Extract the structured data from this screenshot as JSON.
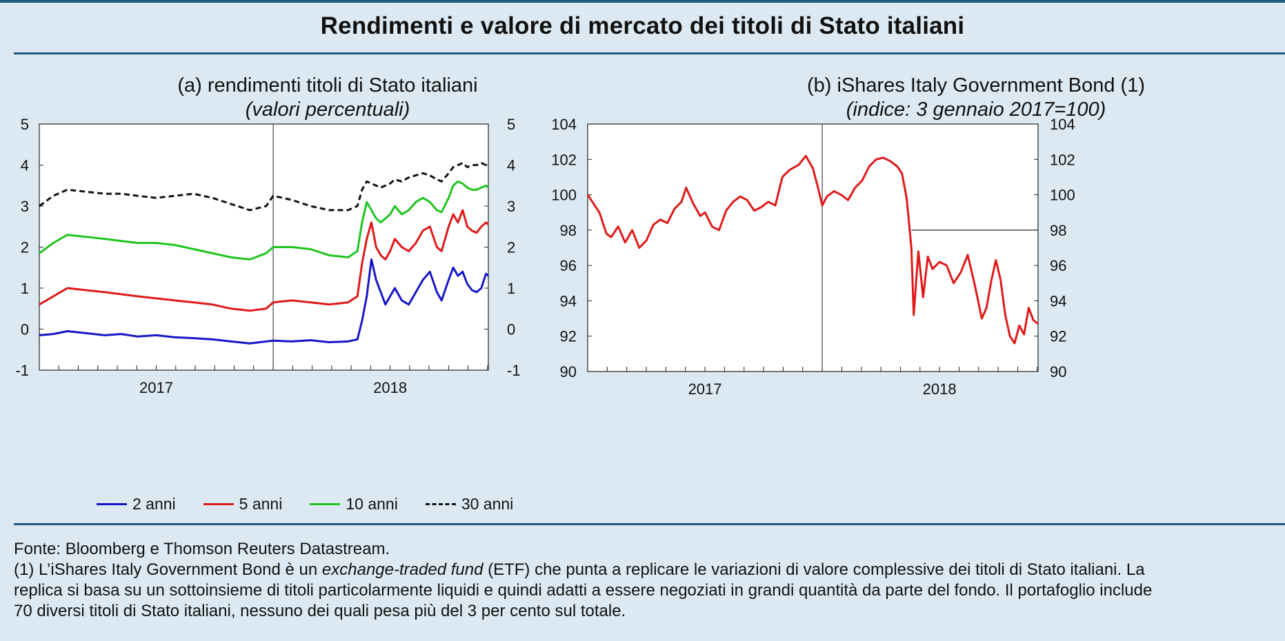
{
  "title": "Rendimenti e valore di mercato dei titoli di Stato italiani",
  "colors": {
    "band": "#1d5a7e",
    "background": "#dce9f2",
    "blue": "#1515c8",
    "red": "#e01818",
    "green": "#1ec41e",
    "black": "#111111"
  },
  "panel_a": {
    "title": "(a) rendimenti titoli di Stato italiani",
    "subtitle": "(valori percentuali)"
  },
  "panel_b": {
    "title": "(b) iShares Italy Government Bond (1)",
    "subtitle": "(indice: 3 gennaio 2017=100)"
  },
  "legend": [
    {
      "label": "2 anni",
      "color": "#1515c8",
      "dashed": false
    },
    {
      "label": "5 anni",
      "color": "#e01818",
      "dashed": false
    },
    {
      "label": "10 anni",
      "color": "#1ec41e",
      "dashed": false
    },
    {
      "label": "30 anni",
      "color": "#111111",
      "dashed": true
    }
  ],
  "footnote": {
    "source": "Fonte: Bloomberg e Thomson Reuters Datastream.",
    "note_prefix": "(1) L’iShares Italy Government Bond è un ",
    "note_italic": "exchange-traded fund",
    "note_rest": " (ETF) che punta a replicare le variazioni di valore complessive dei titoli di Stato italiani. La",
    "line2": "replica si basa su un sottoinsieme di titoli particolarmente liquidi e quindi adatti a essere negoziati in grandi quantità da parte del fondo. Il portafoglio include",
    "line3": "70 diversi titoli di Stato italiani, nessuno dei quali pesa più del 3 per cento sul totale."
  },
  "chart_data": [
    {
      "type": "line",
      "title": "(a) rendimenti titoli di Stato italiani",
      "subtitle": "(valori percentuali)",
      "x_range": [
        2017.0,
        2018.92
      ],
      "year_labels": [
        "2017",
        "2018"
      ],
      "year_label_positions": [
        2017.5,
        2018.5
      ],
      "year_divider": 2018.0,
      "ylim": [
        -1,
        5
      ],
      "yticks": [
        "-1",
        "0",
        "1",
        "2",
        "3",
        "4",
        "5"
      ],
      "y_axis_right": true,
      "series": [
        {
          "name": "2 anni",
          "color": "#1515c8",
          "dashed": false,
          "x": [
            2017.0,
            2017.06,
            2017.12,
            2017.2,
            2017.28,
            2017.35,
            2017.42,
            2017.5,
            2017.58,
            2017.66,
            2017.74,
            2017.82,
            2017.9,
            2017.97,
            2018.0,
            2018.08,
            2018.16,
            2018.24,
            2018.32,
            2018.36,
            2018.38,
            2018.4,
            2018.42,
            2018.44,
            2018.46,
            2018.48,
            2018.5,
            2018.52,
            2018.55,
            2018.58,
            2018.61,
            2018.64,
            2018.67,
            2018.7,
            2018.72,
            2018.75,
            2018.77,
            2018.79,
            2018.81,
            2018.83,
            2018.85,
            2018.87,
            2018.89,
            2018.91,
            2018.92
          ],
          "values": [
            -0.15,
            -0.12,
            -0.05,
            -0.1,
            -0.15,
            -0.12,
            -0.18,
            -0.15,
            -0.2,
            -0.22,
            -0.25,
            -0.3,
            -0.35,
            -0.3,
            -0.28,
            -0.3,
            -0.27,
            -0.32,
            -0.3,
            -0.25,
            0.2,
            0.8,
            1.7,
            1.2,
            0.9,
            0.6,
            0.8,
            1.0,
            0.7,
            0.6,
            0.9,
            1.2,
            1.4,
            0.9,
            0.7,
            1.2,
            1.5,
            1.3,
            1.4,
            1.1,
            0.95,
            0.9,
            1.0,
            1.35,
            1.3
          ]
        },
        {
          "name": "5 anni",
          "color": "#e01818",
          "dashed": false,
          "x": [
            2017.0,
            2017.06,
            2017.12,
            2017.2,
            2017.28,
            2017.35,
            2017.42,
            2017.5,
            2017.58,
            2017.66,
            2017.74,
            2017.82,
            2017.9,
            2017.97,
            2018.0,
            2018.08,
            2018.16,
            2018.24,
            2018.32,
            2018.36,
            2018.38,
            2018.4,
            2018.42,
            2018.44,
            2018.46,
            2018.48,
            2018.5,
            2018.52,
            2018.55,
            2018.58,
            2018.61,
            2018.64,
            2018.67,
            2018.7,
            2018.72,
            2018.75,
            2018.77,
            2018.79,
            2018.81,
            2018.83,
            2018.85,
            2018.87,
            2018.89,
            2018.91,
            2018.92
          ],
          "values": [
            0.6,
            0.8,
            1.0,
            0.95,
            0.9,
            0.85,
            0.8,
            0.75,
            0.7,
            0.65,
            0.6,
            0.5,
            0.45,
            0.5,
            0.65,
            0.7,
            0.65,
            0.6,
            0.65,
            0.8,
            1.6,
            2.2,
            2.6,
            2.0,
            1.8,
            1.7,
            1.9,
            2.2,
            2.0,
            1.9,
            2.1,
            2.4,
            2.5,
            2.0,
            1.9,
            2.5,
            2.8,
            2.6,
            2.9,
            2.5,
            2.4,
            2.35,
            2.5,
            2.6,
            2.55
          ]
        },
        {
          "name": "10 anni",
          "color": "#1ec41e",
          "dashed": false,
          "x": [
            2017.0,
            2017.06,
            2017.12,
            2017.2,
            2017.28,
            2017.35,
            2017.42,
            2017.5,
            2017.58,
            2017.66,
            2017.74,
            2017.82,
            2017.9,
            2017.97,
            2018.0,
            2018.08,
            2018.16,
            2018.24,
            2018.32,
            2018.36,
            2018.38,
            2018.4,
            2018.42,
            2018.44,
            2018.46,
            2018.48,
            2018.5,
            2018.52,
            2018.55,
            2018.58,
            2018.61,
            2018.64,
            2018.67,
            2018.7,
            2018.72,
            2018.75,
            2018.77,
            2018.79,
            2018.81,
            2018.83,
            2018.85,
            2018.87,
            2018.89,
            2018.91,
            2018.92
          ],
          "values": [
            1.85,
            2.1,
            2.3,
            2.25,
            2.2,
            2.15,
            2.1,
            2.1,
            2.05,
            1.95,
            1.85,
            1.75,
            1.7,
            1.85,
            2.0,
            2.0,
            1.95,
            1.8,
            1.75,
            1.9,
            2.6,
            3.1,
            2.9,
            2.7,
            2.6,
            2.7,
            2.8,
            3.0,
            2.8,
            2.9,
            3.1,
            3.2,
            3.1,
            2.9,
            2.85,
            3.2,
            3.5,
            3.6,
            3.55,
            3.45,
            3.4,
            3.4,
            3.45,
            3.5,
            3.45
          ]
        },
        {
          "name": "30 anni",
          "color": "#111111",
          "dashed": true,
          "x": [
            2017.0,
            2017.06,
            2017.12,
            2017.2,
            2017.28,
            2017.35,
            2017.42,
            2017.5,
            2017.58,
            2017.66,
            2017.74,
            2017.82,
            2017.9,
            2017.97,
            2018.0,
            2018.08,
            2018.16,
            2018.24,
            2018.32,
            2018.36,
            2018.38,
            2018.4,
            2018.42,
            2018.44,
            2018.46,
            2018.48,
            2018.5,
            2018.52,
            2018.55,
            2018.58,
            2018.61,
            2018.64,
            2018.67,
            2018.7,
            2018.72,
            2018.75,
            2018.77,
            2018.79,
            2018.81,
            2018.83,
            2018.85,
            2018.87,
            2018.89,
            2018.91,
            2018.92
          ],
          "values": [
            3.0,
            3.25,
            3.4,
            3.35,
            3.3,
            3.3,
            3.25,
            3.2,
            3.25,
            3.3,
            3.2,
            3.05,
            2.9,
            3.0,
            3.25,
            3.15,
            3.0,
            2.9,
            2.9,
            3.0,
            3.4,
            3.6,
            3.55,
            3.5,
            3.45,
            3.5,
            3.55,
            3.65,
            3.6,
            3.7,
            3.75,
            3.8,
            3.75,
            3.65,
            3.6,
            3.8,
            3.95,
            4.0,
            4.05,
            3.95,
            4.0,
            4.0,
            4.05,
            4.0,
            4.0
          ]
        }
      ]
    },
    {
      "type": "line",
      "title": "(b) iShares Italy Government Bond (1)",
      "subtitle": "(indice: 3 gennaio 2017=100)",
      "x_range": [
        2017.0,
        2018.92
      ],
      "year_labels": [
        "2017",
        "2018"
      ],
      "year_label_positions": [
        2017.5,
        2018.5
      ],
      "year_divider": 2018.0,
      "ylim": [
        90,
        104
      ],
      "yticks": [
        "90",
        "92",
        "94",
        "96",
        "98",
        "100",
        "102",
        "104"
      ],
      "y_axis_right": true,
      "reference_line": {
        "value": 98,
        "from_x": 2018.38
      },
      "series": [
        {
          "name": "iShares Italy Government Bond",
          "color": "#e01818",
          "dashed": false,
          "x": [
            2017.0,
            2017.02,
            2017.05,
            2017.08,
            2017.1,
            2017.13,
            2017.16,
            2017.19,
            2017.22,
            2017.25,
            2017.28,
            2017.31,
            2017.34,
            2017.37,
            2017.4,
            2017.42,
            2017.45,
            2017.48,
            2017.5,
            2017.53,
            2017.56,
            2017.59,
            2017.62,
            2017.65,
            2017.68,
            2017.71,
            2017.74,
            2017.77,
            2017.8,
            2017.83,
            2017.86,
            2017.9,
            2017.93,
            2017.96,
            2017.98,
            2018.0,
            2018.02,
            2018.05,
            2018.08,
            2018.11,
            2018.14,
            2018.17,
            2018.2,
            2018.23,
            2018.26,
            2018.29,
            2018.32,
            2018.34,
            2018.36,
            2018.38,
            2018.39,
            2018.41,
            2018.43,
            2018.45,
            2018.47,
            2018.5,
            2018.53,
            2018.56,
            2018.59,
            2018.62,
            2018.65,
            2018.68,
            2018.7,
            2018.72,
            2018.74,
            2018.76,
            2018.78,
            2018.8,
            2018.82,
            2018.84,
            2018.86,
            2018.88,
            2018.9,
            2018.92
          ],
          "values": [
            100.0,
            99.6,
            99.0,
            97.8,
            97.6,
            98.2,
            97.3,
            98.0,
            97.0,
            97.4,
            98.3,
            98.6,
            98.4,
            99.2,
            99.6,
            100.4,
            99.5,
            98.8,
            99.0,
            98.2,
            98.0,
            99.1,
            99.6,
            99.9,
            99.7,
            99.1,
            99.3,
            99.6,
            99.4,
            101.0,
            101.4,
            101.7,
            102.2,
            101.5,
            100.5,
            99.4,
            99.9,
            100.2,
            100.0,
            99.7,
            100.4,
            100.8,
            101.6,
            102.0,
            102.1,
            101.9,
            101.6,
            101.2,
            99.8,
            97.0,
            93.2,
            96.8,
            94.2,
            96.5,
            95.8,
            96.2,
            96.0,
            95.0,
            95.6,
            96.6,
            94.9,
            93.0,
            93.6,
            95.1,
            96.3,
            95.2,
            93.2,
            92.0,
            91.6,
            92.6,
            92.1,
            93.6,
            92.9,
            92.7
          ]
        }
      ]
    }
  ]
}
